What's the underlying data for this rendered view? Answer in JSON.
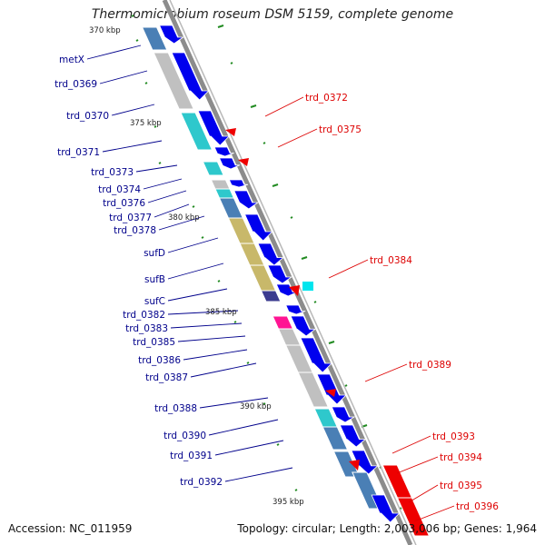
{
  "title": "Thermomicrobium roseum DSM 5159, complete genome",
  "footer": {
    "accession": "Accession: NC_011959",
    "topology": "Topology: circular; Length: 2,003,006 bp; Genes: 1,964"
  },
  "colors": {
    "left_label": "#00008b",
    "right_label": "#dd0000",
    "backbone": "#8c8c8c",
    "tick": "#228b22",
    "forward_gene": "#0000ee",
    "reverse_gene": "#ee0000",
    "cog_gray": "#c0c0c0",
    "cog_cyan": "#2ec8cc",
    "cog_steelblue": "#4a7fb5",
    "cog_khaki": "#c8b86a",
    "cog_navy": "#3b3b8f",
    "cog_pink": "#ff1493"
  },
  "kbp_labels": [
    "370 kbp",
    "375 kbp",
    "380 kbp",
    "385 kbp",
    "390 kbp",
    "395 kbp"
  ],
  "left_labels": [
    "metX",
    "trd_0369",
    "trd_0370",
    "trd_0371",
    "trd_0373",
    "trd_0374",
    "trd_0376",
    "trd_0377",
    "trd_0378",
    "sufD",
    "sufB",
    "sufC",
    "trd_0382",
    "trd_0383",
    "trd_0385",
    "trd_0386",
    "trd_0387",
    "trd_0388",
    "trd_0390",
    "trd_0391",
    "trd_0392"
  ],
  "right_labels": [
    "trd_0372",
    "trd_0375",
    "trd_0384",
    "trd_0389",
    "trd_0393",
    "trd_0394",
    "trd_0395",
    "trd_0396"
  ]
}
